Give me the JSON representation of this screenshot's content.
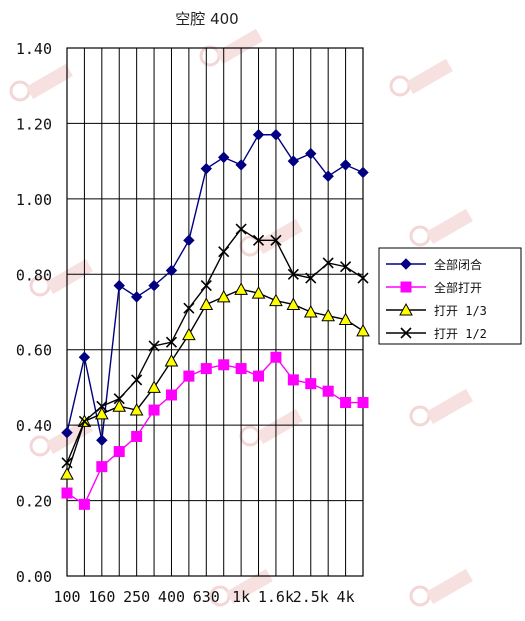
{
  "chart_data": {
    "type": "line",
    "title": "空腔 400",
    "xlabel": "",
    "ylabel": "",
    "ylim": [
      0,
      1.4
    ],
    "yticks": [
      "0.00",
      "0.20",
      "0.40",
      "0.60",
      "0.80",
      "1.00",
      "1.20",
      "1.40"
    ],
    "x": [
      "100",
      "125",
      "160",
      "200",
      "250",
      "315",
      "400",
      "500",
      "630",
      "800",
      "1k",
      "1.25k",
      "1.6k",
      "2k",
      "2.5k",
      "3.15k",
      "4k",
      "5k"
    ],
    "xtick_labels": [
      "100",
      "160",
      "250",
      "400",
      "630",
      "1k",
      "1.6k",
      "2.5k",
      "4k"
    ],
    "grid": true,
    "legend_position": "right",
    "series": [
      {
        "name": "全部闭合",
        "color": "#000080",
        "marker": "diamond",
        "values": [
          0.38,
          0.58,
          0.36,
          0.77,
          0.74,
          0.77,
          0.81,
          0.89,
          1.08,
          1.11,
          1.09,
          1.17,
          1.17,
          1.1,
          1.12,
          1.06,
          1.09,
          1.07
        ]
      },
      {
        "name": "全部打开",
        "color": "#ff00ff",
        "marker": "square",
        "values": [
          0.22,
          0.19,
          0.29,
          0.33,
          0.37,
          0.44,
          0.48,
          0.53,
          0.55,
          0.56,
          0.55,
          0.53,
          0.58,
          0.52,
          0.51,
          0.49,
          0.46,
          0.46
        ]
      },
      {
        "name": "打开 1/3",
        "color": "#000000",
        "marker": "triangle",
        "values": [
          0.27,
          0.41,
          0.43,
          0.45,
          0.44,
          0.5,
          0.57,
          0.64,
          0.72,
          0.74,
          0.76,
          0.75,
          0.73,
          0.72,
          0.7,
          0.69,
          0.68,
          0.65
        ]
      },
      {
        "name": "打开 1/2",
        "color": "#000000",
        "marker": "x",
        "values": [
          0.3,
          0.41,
          0.45,
          0.47,
          0.52,
          0.61,
          0.62,
          0.71,
          0.77,
          0.86,
          0.92,
          0.89,
          0.89,
          0.8,
          0.79,
          0.83,
          0.82,
          0.79
        ]
      }
    ]
  }
}
